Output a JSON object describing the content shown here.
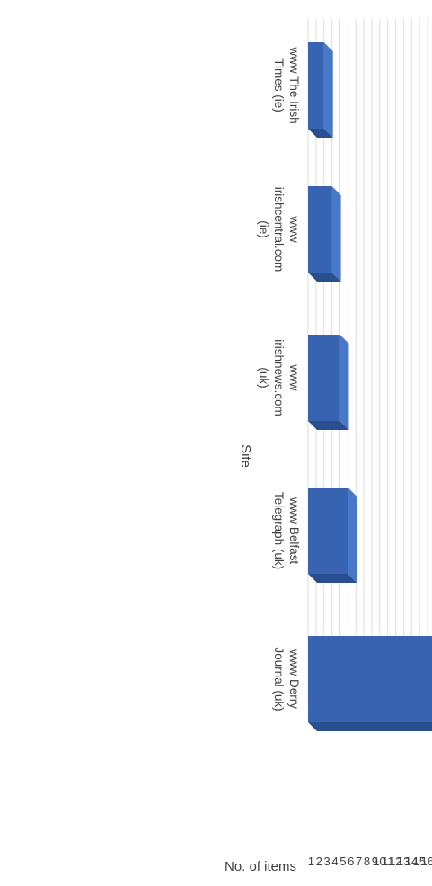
{
  "chart_data": {
    "type": "bar",
    "orientation": "rotated-90-clockwise",
    "style": "3d-column",
    "bar_color": "#3763b0",
    "grid": true,
    "legend": "none",
    "title": "",
    "xlabel": "Site",
    "ylabel": "No. of items",
    "ylim": [
      1,
      16
    ],
    "yticks": [
      "1",
      "2",
      "3",
      "4",
      "5",
      "6",
      "7",
      "8",
      "9",
      "10",
      "11",
      "12",
      "13",
      "14",
      "15",
      "16"
    ],
    "categories": [
      [
        "www Derry",
        "Journal (uk)"
      ],
      [
        "www Belfast",
        "Telegraph (uk)"
      ],
      [
        "www",
        "irishnews.com",
        "(uk)"
      ],
      [
        "www",
        "irishcentral.com",
        "(ie)"
      ],
      [
        "www The Irish",
        "Times (ie)"
      ]
    ],
    "values": [
      16,
      5,
      4,
      3,
      2
    ]
  }
}
